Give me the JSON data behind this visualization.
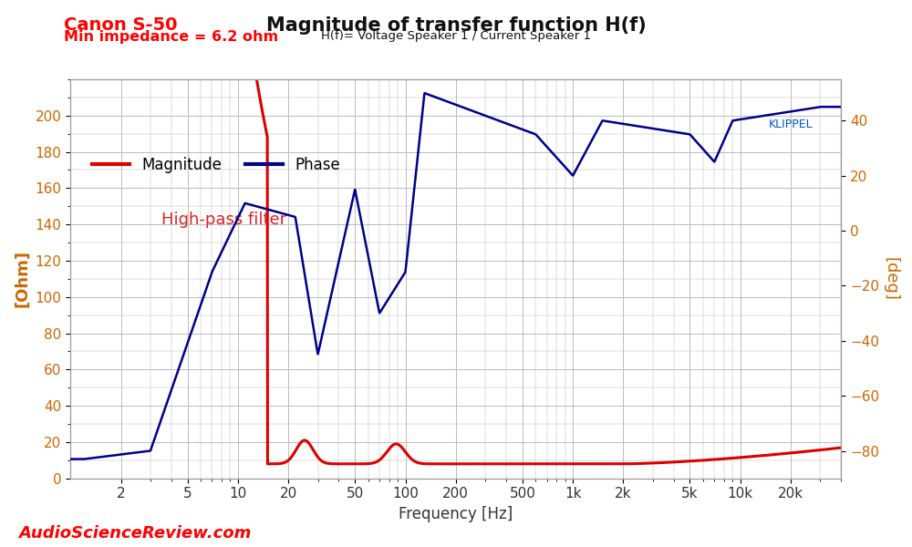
{
  "title": "Magnitude of transfer function H(f)",
  "subtitle": "H(f)= Voltage Speaker 1 / Current Speaker 1",
  "canon_label": "Canon S-50",
  "min_imp_label": "Min impedance = 6.2 ohm",
  "annotation": "High-pass filter",
  "klippel_label": "KLIPPEL",
  "ylabel_left": "[Ohm]",
  "ylabel_right": "[deg]",
  "xlabel": "Frequency [Hz]",
  "watermark": "AudioScienceReview.com",
  "legend_magnitude": "Magnitude",
  "legend_phase": "Phase",
  "title_color": "#111111",
  "canon_color": "#ff0000",
  "min_imp_color": "#ff0000",
  "magnitude_color": "#dd0000",
  "phase_color": "#00008b",
  "ylabel_color": "#cc6600",
  "watermark_color": "#ff0000",
  "klippel_color": "#0055cc",
  "annotation_color": "#dd2222",
  "bg_color": "#ffffff",
  "grid_color": "#bbbbbb",
  "ylim_left": [
    0,
    220
  ],
  "ylim_right": [
    -90,
    55
  ],
  "xlim": [
    1.0,
    40000
  ],
  "yticks_left": [
    0,
    20,
    40,
    60,
    80,
    100,
    120,
    140,
    160,
    180,
    200
  ],
  "yticks_right": [
    -80,
    -60,
    -40,
    -20,
    0,
    20,
    40
  ],
  "freq_ticks": [
    2,
    5,
    10,
    20,
    50,
    100,
    200,
    500,
    1000,
    2000,
    5000,
    10000,
    20000
  ],
  "freq_tick_labels": [
    "2",
    "5",
    "10",
    "20",
    "50",
    "100",
    "200",
    "500",
    "1k",
    "2k",
    "5k",
    "10k",
    "20k"
  ]
}
